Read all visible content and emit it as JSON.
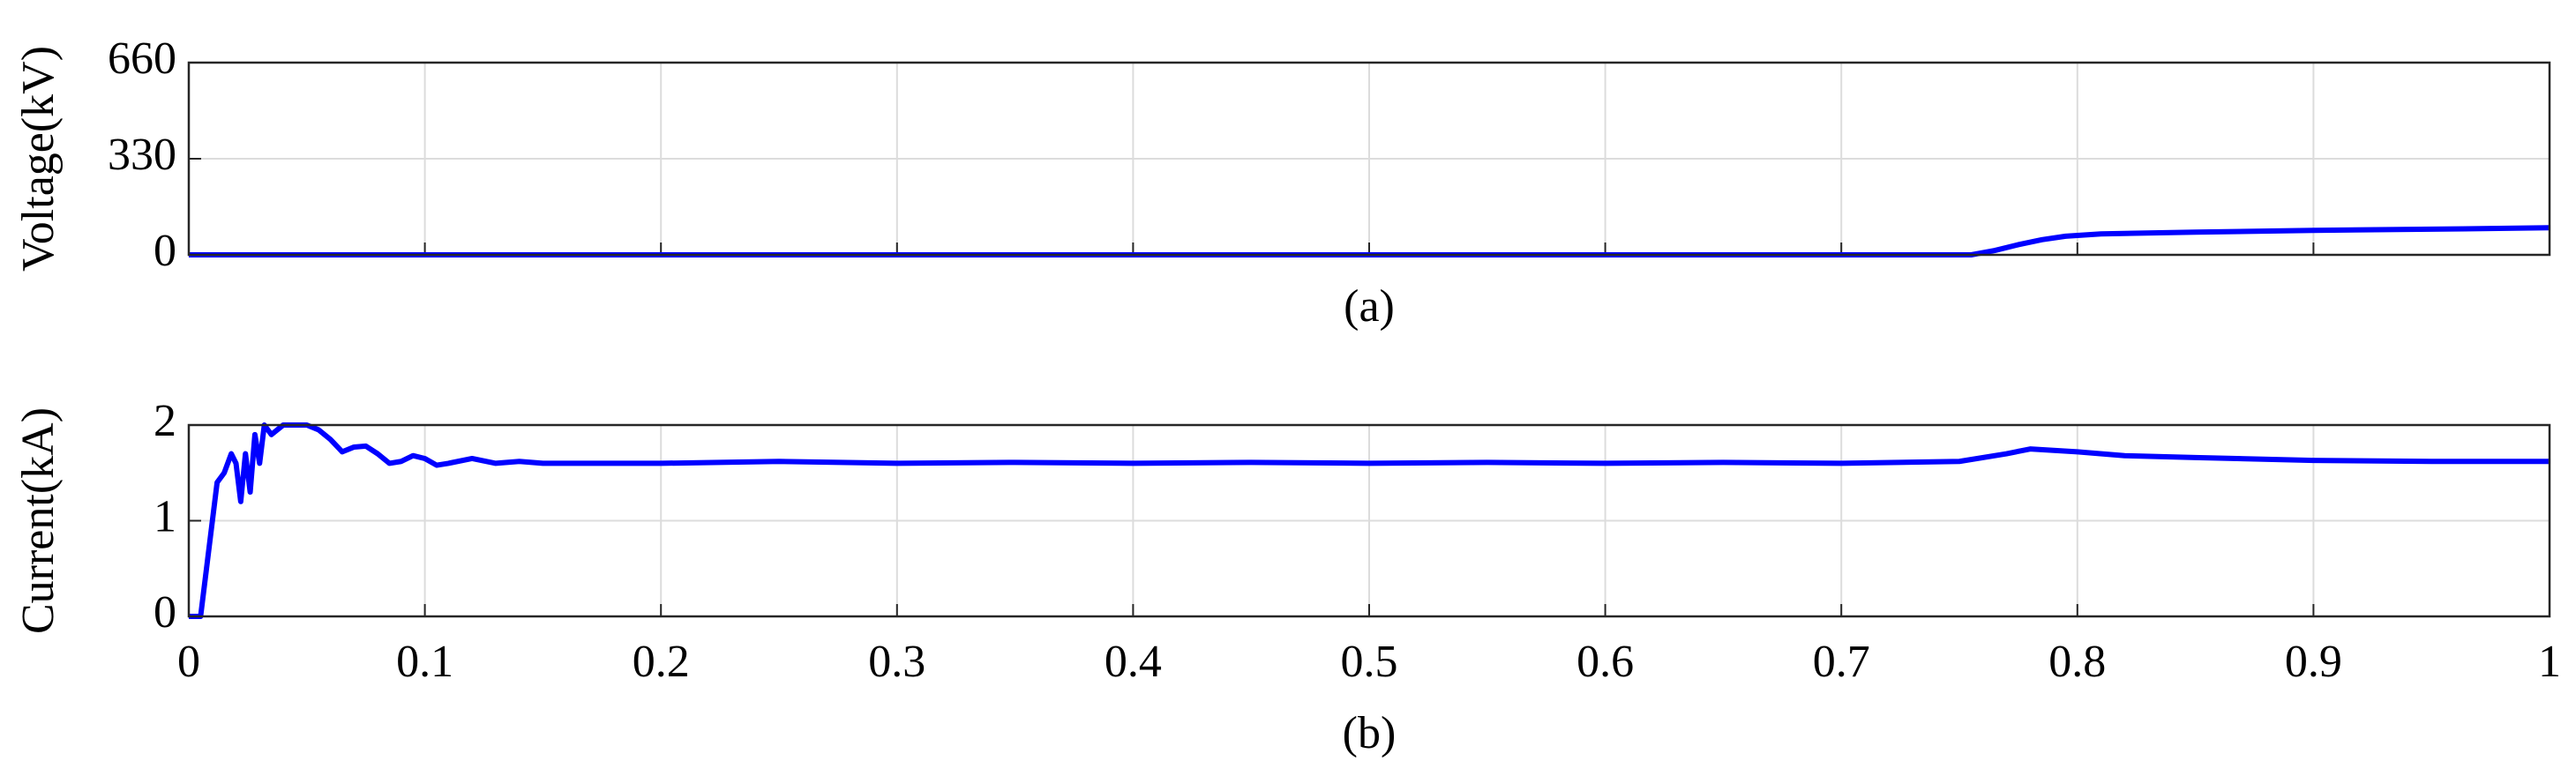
{
  "chart_data": [
    {
      "type": "line",
      "ylabel": "Voltage(kV)",
      "subtitle": "(a)",
      "x": [
        0,
        0.755,
        0.765,
        0.775,
        0.785,
        0.795,
        0.81,
        0.85,
        0.9,
        0.95,
        1
      ],
      "values": [
        0,
        0,
        15,
        35,
        52,
        64,
        72,
        78,
        84,
        88,
        93
      ],
      "color": "#0000ff",
      "xlim": [
        0,
        1
      ],
      "xticks": [
        0,
        0.1,
        0.2,
        0.3,
        0.4,
        0.5,
        0.6,
        0.7,
        0.8,
        0.9,
        1
      ],
      "ylim": [
        0,
        660
      ],
      "yticks": [
        0,
        330,
        660
      ],
      "grid": true
    },
    {
      "type": "line",
      "ylabel": "Current(kA)",
      "subtitle": "(b)",
      "x": [
        0,
        0.005,
        0.008,
        0.012,
        0.015,
        0.018,
        0.02,
        0.022,
        0.024,
        0.026,
        0.028,
        0.03,
        0.032,
        0.035,
        0.04,
        0.05,
        0.055,
        0.06,
        0.065,
        0.07,
        0.075,
        0.08,
        0.085,
        0.09,
        0.095,
        0.1,
        0.105,
        0.11,
        0.12,
        0.13,
        0.14,
        0.15,
        0.2,
        0.25,
        0.3,
        0.35,
        0.4,
        0.45,
        0.5,
        0.55,
        0.6,
        0.65,
        0.7,
        0.75,
        0.77,
        0.78,
        0.8,
        0.82,
        0.85,
        0.9,
        0.95,
        1
      ],
      "values": [
        0,
        0,
        0.6,
        1.4,
        1.5,
        1.7,
        1.6,
        1.2,
        1.7,
        1.3,
        1.9,
        1.6,
        2,
        1.9,
        2,
        2,
        1.95,
        1.85,
        1.72,
        1.77,
        1.78,
        1.7,
        1.6,
        1.62,
        1.68,
        1.65,
        1.58,
        1.6,
        1.65,
        1.6,
        1.62,
        1.6,
        1.6,
        1.62,
        1.6,
        1.61,
        1.6,
        1.61,
        1.6,
        1.61,
        1.6,
        1.61,
        1.6,
        1.62,
        1.7,
        1.75,
        1.72,
        1.68,
        1.66,
        1.63,
        1.62,
        1.62
      ],
      "color": "#0000ff",
      "xlim": [
        0,
        1
      ],
      "xticks": [
        0,
        0.1,
        0.2,
        0.3,
        0.4,
        0.5,
        0.6,
        0.7,
        0.8,
        0.9,
        1
      ],
      "ylim": [
        0,
        2
      ],
      "yticks": [
        0,
        1,
        2
      ],
      "grid": true
    }
  ]
}
